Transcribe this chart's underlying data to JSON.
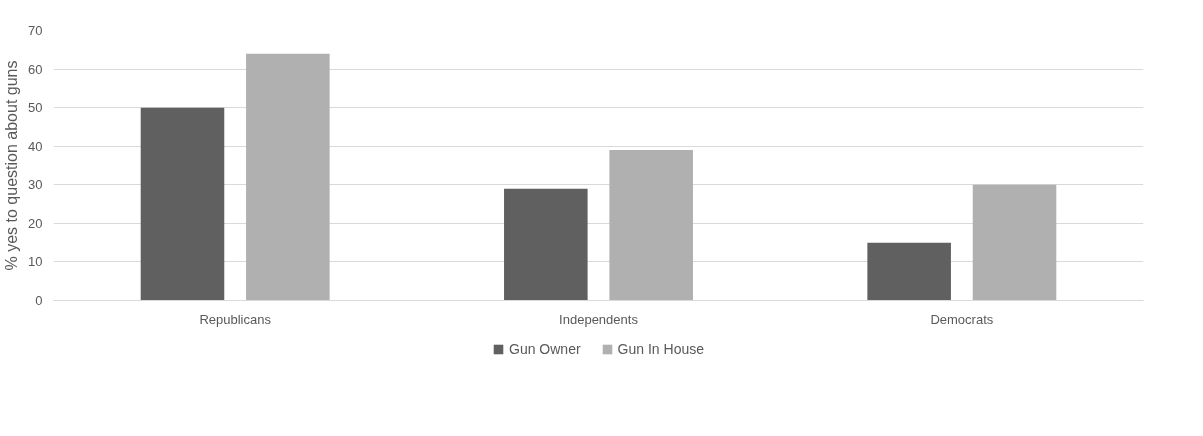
{
  "chart_data": {
    "type": "bar",
    "ylabel": "% yes to question about guns",
    "categories": [
      "Republicans",
      "Independents",
      "Democrats"
    ],
    "series": [
      {
        "name": "Gun Owner",
        "color": "#606060",
        "values": [
          50,
          29,
          15
        ]
      },
      {
        "name": "Gun In House",
        "color": "#b0b0b0",
        "values": [
          64,
          39,
          30
        ]
      }
    ],
    "ylim": [
      0,
      70
    ],
    "yticks": [
      0,
      10,
      20,
      30,
      40,
      50,
      60,
      70
    ],
    "grid": "y",
    "legend": "bottom"
  }
}
